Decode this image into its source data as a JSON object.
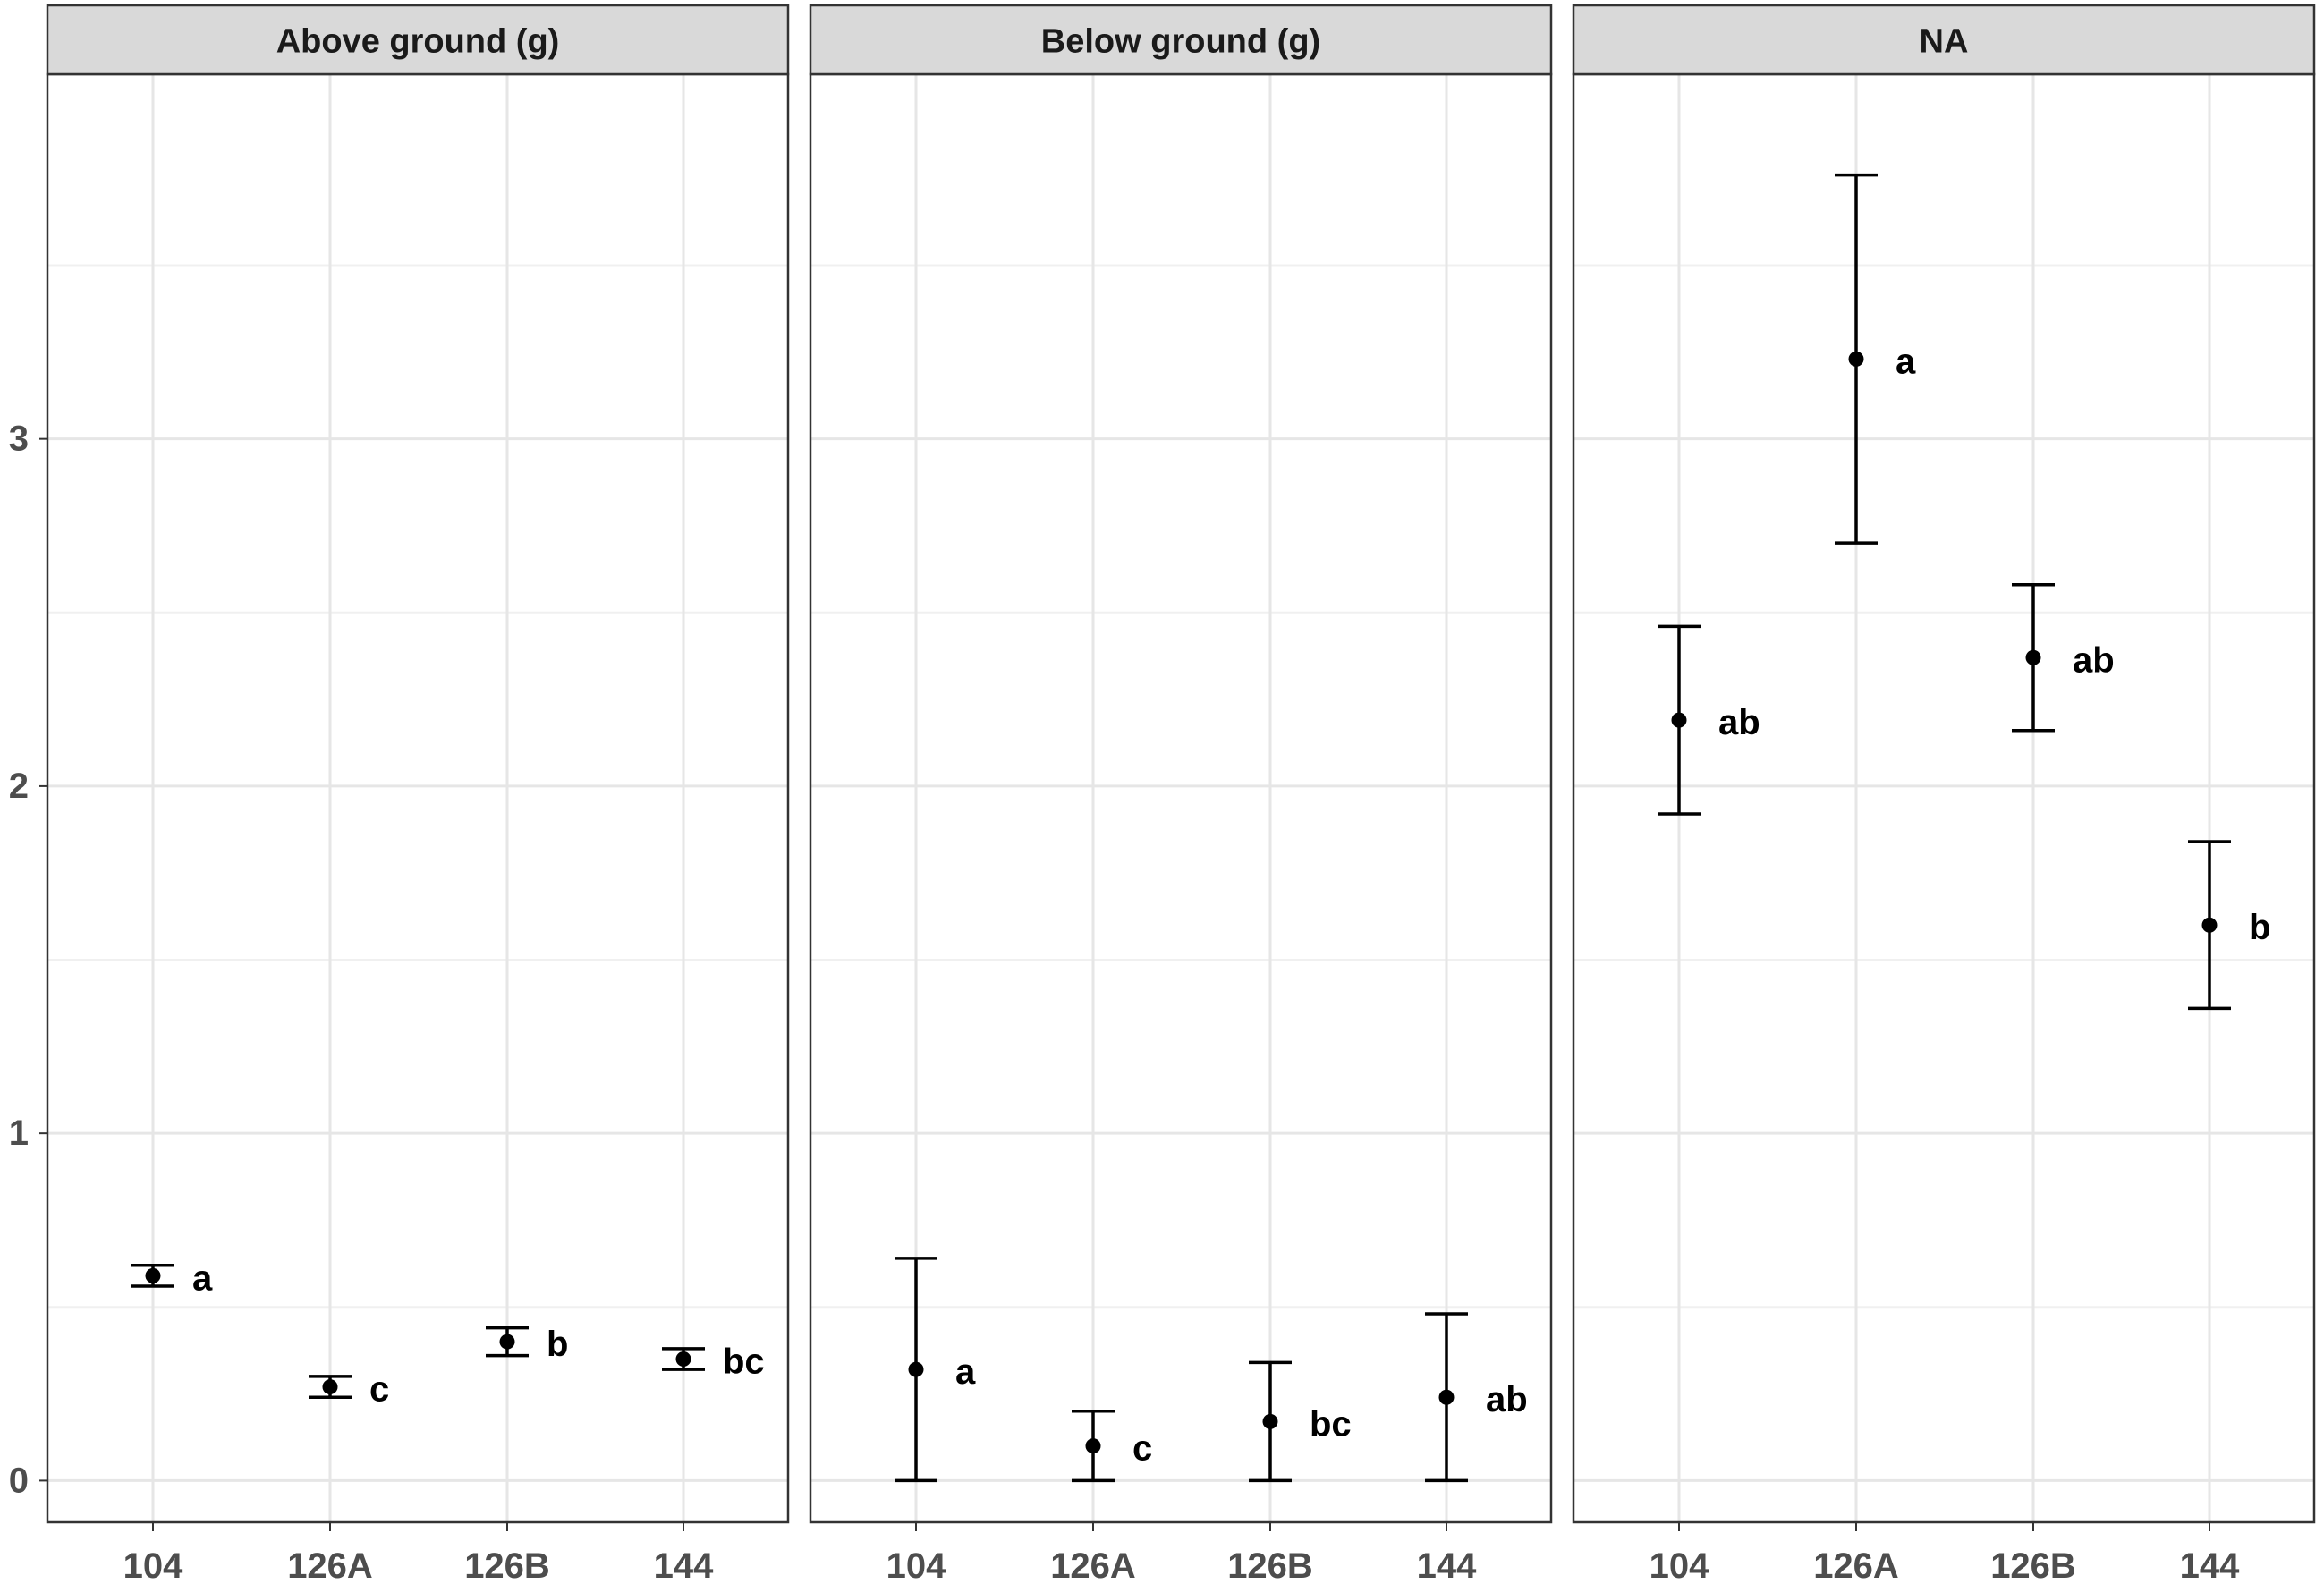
{
  "chart_data": {
    "type": "scatter",
    "subtype": "faceted point with error bars and significance letters",
    "categories": [
      "104",
      "126A",
      "126B",
      "144"
    ],
    "ylim": [
      -0.12,
      4.05
    ],
    "y_ticks": [
      0,
      1,
      2,
      3
    ],
    "y_tick_labels": [
      "0",
      "1",
      "2",
      "3"
    ],
    "grid": true,
    "facets": [
      {
        "title": "Above ground (g)",
        "points": [
          {
            "category": "104",
            "y": 0.59,
            "lower": 0.56,
            "upper": 0.62,
            "label": "a"
          },
          {
            "category": "126A",
            "y": 0.27,
            "lower": 0.24,
            "upper": 0.3,
            "label": "c"
          },
          {
            "category": "126B",
            "y": 0.4,
            "lower": 0.36,
            "upper": 0.44,
            "label": "b"
          },
          {
            "category": "144",
            "y": 0.35,
            "lower": 0.32,
            "upper": 0.38,
            "label": "bc"
          }
        ]
      },
      {
        "title": "Below ground (g)",
        "points": [
          {
            "category": "104",
            "y": 0.32,
            "lower": 0.0,
            "upper": 0.64,
            "label": "a"
          },
          {
            "category": "126A",
            "y": 0.1,
            "lower": 0.0,
            "upper": 0.2,
            "label": "c"
          },
          {
            "category": "126B",
            "y": 0.17,
            "lower": 0.0,
            "upper": 0.34,
            "label": "bc"
          },
          {
            "category": "144",
            "y": 0.24,
            "lower": 0.0,
            "upper": 0.48,
            "label": "ab"
          }
        ]
      },
      {
        "title": "NA",
        "points": [
          {
            "category": "104",
            "y": 2.19,
            "lower": 1.92,
            "upper": 2.46,
            "label": "ab"
          },
          {
            "category": "126A",
            "y": 3.23,
            "lower": 2.7,
            "upper": 3.76,
            "label": "a"
          },
          {
            "category": "126B",
            "y": 2.37,
            "lower": 2.16,
            "upper": 2.58,
            "label": "ab"
          },
          {
            "category": "144",
            "y": 1.6,
            "lower": 1.36,
            "upper": 1.84,
            "label": "b"
          }
        ]
      }
    ]
  }
}
